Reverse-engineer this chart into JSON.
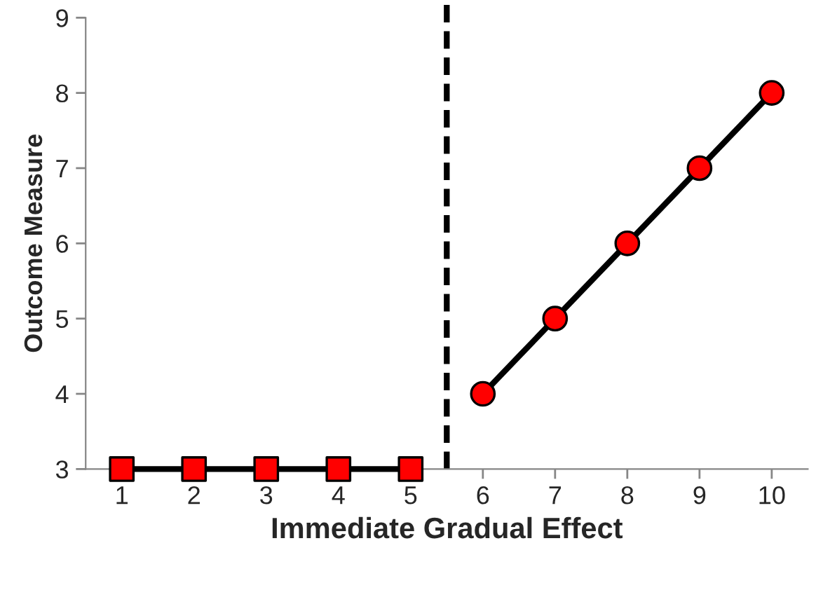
{
  "chart_data": {
    "type": "line",
    "xlabel": "Immediate Gradual Effect",
    "ylabel": "Outcome Measure",
    "xlim": [
      0.5,
      10.5
    ],
    "xticks": [
      1,
      2,
      3,
      4,
      5,
      6,
      7,
      8,
      9,
      10
    ],
    "ylim": [
      3,
      9
    ],
    "yticks": [
      3,
      4,
      5,
      6,
      7,
      8,
      9
    ],
    "series": [
      {
        "x": [
          1,
          2,
          3,
          4,
          5
        ],
        "values": [
          3,
          3,
          3,
          3,
          3
        ],
        "color": "#000000",
        "colors": [
          "#ff0000",
          "#ff0000",
          "#ff0000",
          "#ff0000",
          "#ff0000"
        ],
        "marker": "square"
      },
      {
        "x": [
          6,
          7,
          8,
          9,
          10
        ],
        "values": [
          4,
          5,
          6,
          7,
          8
        ],
        "color": "#000000",
        "colors": [
          "#ff0000",
          "#ff0000",
          "#ff0000",
          "#ff0000",
          "#ff0000"
        ],
        "marker": "circle"
      }
    ],
    "ref_lines": [
      {
        "axis": "x",
        "value": 5.5,
        "color": "#000000",
        "line_style": "dashed"
      }
    ],
    "grid": false,
    "legend": false,
    "line_style": "solid"
  }
}
